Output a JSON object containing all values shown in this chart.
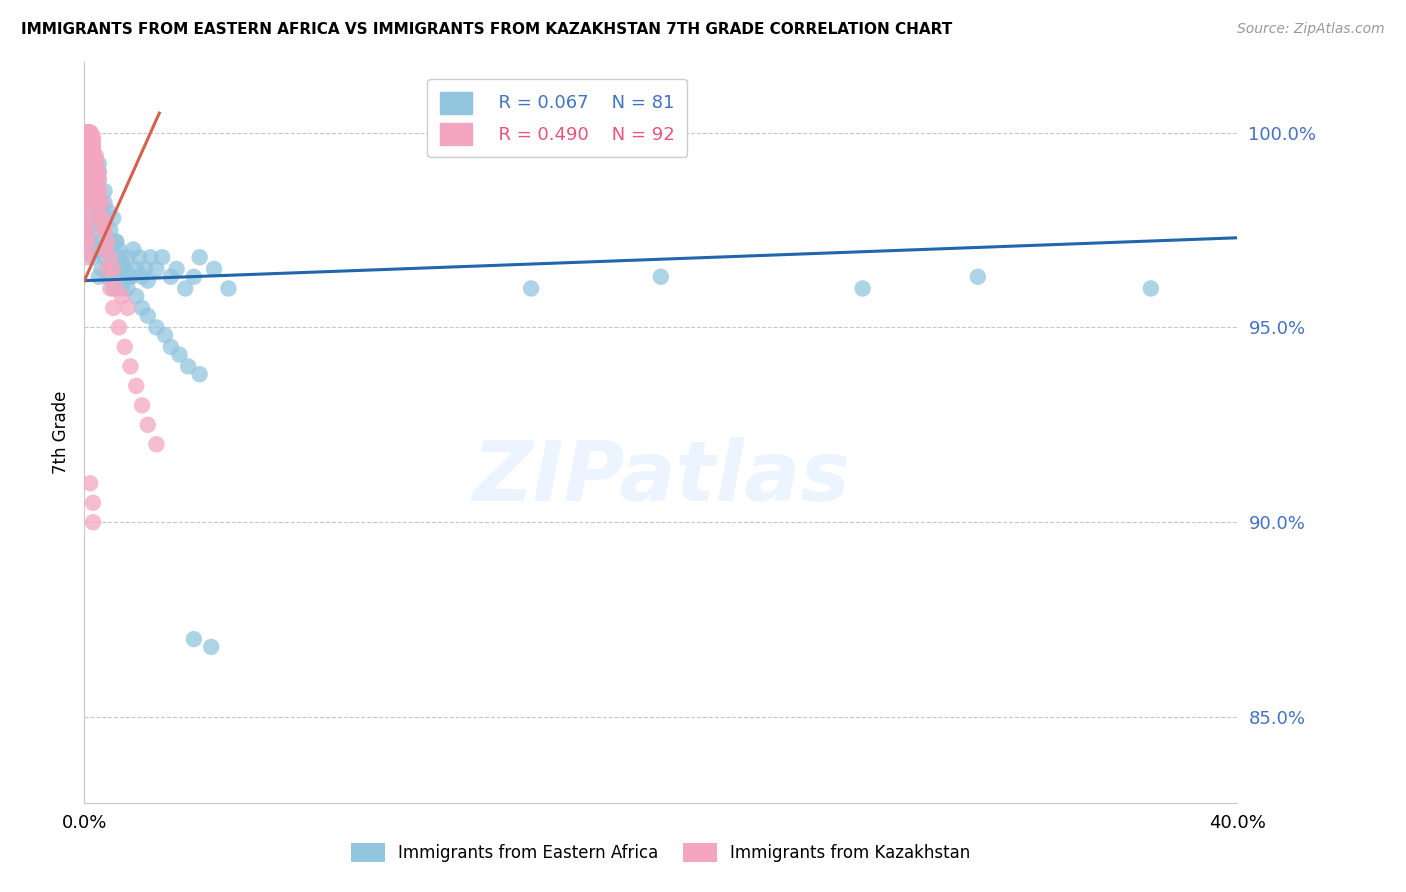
{
  "title": "IMMIGRANTS FROM EASTERN AFRICA VS IMMIGRANTS FROM KAZAKHSTAN 7TH GRADE CORRELATION CHART",
  "source": "Source: ZipAtlas.com",
  "ylabel": "7th Grade",
  "yticks": [
    0.85,
    0.9,
    0.95,
    1.0
  ],
  "ytick_labels": [
    "85.0%",
    "90.0%",
    "95.0%",
    "100.0%"
  ],
  "xmin": 0.0,
  "xmax": 0.4,
  "ymin": 0.828,
  "ymax": 1.018,
  "blue_color": "#92c5de",
  "pink_color": "#f4a6c0",
  "trendline_color_blue": "#2166ac",
  "trendline_color_pink": "#d6604d",
  "watermark_text": "ZIPatlas",
  "blue_points_x": [
    0.001,
    0.002,
    0.002,
    0.003,
    0.003,
    0.003,
    0.004,
    0.004,
    0.005,
    0.005,
    0.005,
    0.005,
    0.006,
    0.006,
    0.006,
    0.007,
    0.007,
    0.007,
    0.008,
    0.008,
    0.009,
    0.009,
    0.01,
    0.01,
    0.011,
    0.011,
    0.012,
    0.012,
    0.013,
    0.013,
    0.014,
    0.015,
    0.016,
    0.017,
    0.018,
    0.019,
    0.02,
    0.021,
    0.022,
    0.023,
    0.025,
    0.027,
    0.03,
    0.032,
    0.035,
    0.038,
    0.04,
    0.045,
    0.05,
    0.004,
    0.004,
    0.005,
    0.005,
    0.006,
    0.006,
    0.007,
    0.008,
    0.009,
    0.01,
    0.011,
    0.012,
    0.013,
    0.015,
    0.016,
    0.018,
    0.02,
    0.022,
    0.025,
    0.028,
    0.03,
    0.033,
    0.036,
    0.04,
    0.155,
    0.2,
    0.27,
    0.31,
    0.37,
    0.038,
    0.044
  ],
  "blue_points_y": [
    0.975,
    0.98,
    0.972,
    0.968,
    0.978,
    0.985,
    0.97,
    0.975,
    0.963,
    0.97,
    0.978,
    0.99,
    0.965,
    0.972,
    0.98,
    0.968,
    0.975,
    0.982,
    0.963,
    0.97,
    0.965,
    0.972,
    0.96,
    0.968,
    0.965,
    0.972,
    0.963,
    0.97,
    0.96,
    0.967,
    0.965,
    0.968,
    0.963,
    0.97,
    0.965,
    0.968,
    0.963,
    0.965,
    0.962,
    0.968,
    0.965,
    0.968,
    0.963,
    0.965,
    0.96,
    0.963,
    0.968,
    0.965,
    0.96,
    0.985,
    0.99,
    0.988,
    0.992,
    0.982,
    0.978,
    0.985,
    0.98,
    0.975,
    0.978,
    0.972,
    0.968,
    0.965,
    0.96,
    0.963,
    0.958,
    0.955,
    0.953,
    0.95,
    0.948,
    0.945,
    0.943,
    0.94,
    0.938,
    0.96,
    0.963,
    0.96,
    0.963,
    0.96,
    0.87,
    0.868
  ],
  "pink_points_x": [
    0.001,
    0.001,
    0.001,
    0.001,
    0.001,
    0.001,
    0.001,
    0.001,
    0.001,
    0.002,
    0.002,
    0.002,
    0.002,
    0.002,
    0.002,
    0.003,
    0.003,
    0.003,
    0.003,
    0.003,
    0.004,
    0.004,
    0.004,
    0.005,
    0.005,
    0.005,
    0.006,
    0.006,
    0.007,
    0.007,
    0.008,
    0.009,
    0.01,
    0.012,
    0.014,
    0.016,
    0.018,
    0.02,
    0.022,
    0.025,
    0.001,
    0.001,
    0.001,
    0.001,
    0.001,
    0.001,
    0.001,
    0.001,
    0.001,
    0.001,
    0.001,
    0.001,
    0.001,
    0.001,
    0.001,
    0.001,
    0.001,
    0.001,
    0.001,
    0.002,
    0.002,
    0.002,
    0.002,
    0.002,
    0.002,
    0.002,
    0.002,
    0.002,
    0.003,
    0.003,
    0.003,
    0.003,
    0.003,
    0.003,
    0.004,
    0.004,
    0.004,
    0.004,
    0.005,
    0.005,
    0.006,
    0.007,
    0.008,
    0.009,
    0.01,
    0.011,
    0.013,
    0.015,
    0.002,
    0.003,
    0.003
  ],
  "pink_points_y": [
    1.0,
    1.0,
    1.0,
    1.0,
    1.0,
    1.0,
    0.999,
    0.999,
    0.998,
    1.0,
    1.0,
    1.0,
    0.999,
    0.999,
    0.998,
    0.999,
    0.998,
    0.997,
    0.996,
    0.995,
    0.994,
    0.993,
    0.992,
    0.99,
    0.988,
    0.985,
    0.982,
    0.978,
    0.975,
    0.97,
    0.965,
    0.96,
    0.955,
    0.95,
    0.945,
    0.94,
    0.935,
    0.93,
    0.925,
    0.92,
    0.998,
    0.997,
    0.996,
    0.995,
    0.994,
    0.993,
    0.992,
    0.99,
    0.988,
    0.986,
    0.984,
    0.982,
    0.98,
    0.978,
    0.976,
    0.974,
    0.972,
    0.97,
    0.968,
    0.997,
    0.996,
    0.995,
    0.993,
    0.991,
    0.989,
    0.987,
    0.985,
    0.983,
    0.995,
    0.993,
    0.991,
    0.989,
    0.987,
    0.985,
    0.99,
    0.988,
    0.985,
    0.982,
    0.985,
    0.982,
    0.978,
    0.975,
    0.972,
    0.968,
    0.965,
    0.96,
    0.958,
    0.955,
    0.91,
    0.905,
    0.9
  ],
  "blue_trend_x": [
    0.0,
    0.4
  ],
  "blue_trend_y": [
    0.962,
    0.973
  ],
  "pink_trend_x": [
    0.0,
    0.026
  ],
  "pink_trend_y": [
    0.962,
    1.005
  ]
}
